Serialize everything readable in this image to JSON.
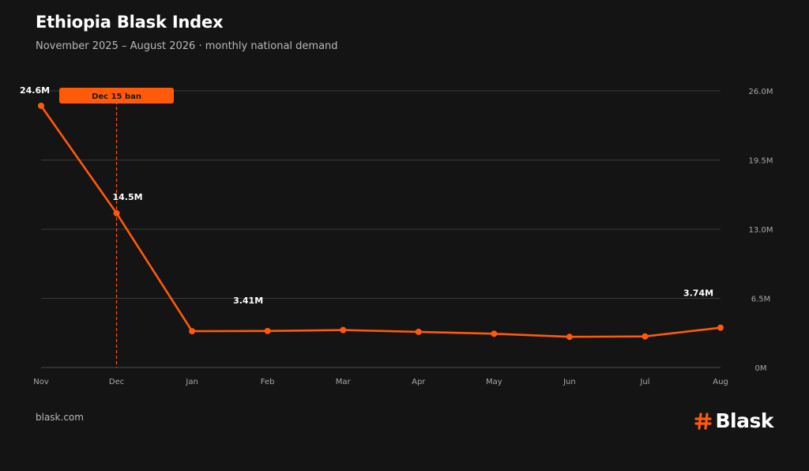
{
  "header": {
    "title": "Ethiopia Blask Index",
    "subtitle": "November 2025 – August 2026 · monthly national demand"
  },
  "footer": {
    "source": "blask.com",
    "brand": "Blask",
    "brand_icon": "hash-icon"
  },
  "colors": {
    "background": "#141414",
    "accent": "#ff5a0a",
    "grid": "#3a3a3a",
    "text": "#ffffff",
    "muted": "#a8a8a8"
  },
  "chart_data": {
    "type": "line",
    "categories": [
      "Nov",
      "Dec",
      "Jan",
      "Feb",
      "Mar",
      "Apr",
      "May",
      "Jun",
      "Jul",
      "Aug"
    ],
    "series": [
      {
        "values": [
          24.6,
          14.5,
          3.41,
          3.43,
          3.52,
          3.35,
          3.17,
          2.88,
          2.92,
          3.74
        ]
      }
    ],
    "ylim": [
      0,
      26
    ],
    "yticks": [
      "0M",
      "6.5M",
      "13.0M",
      "19.5M",
      "26.0M"
    ],
    "ytick_values": [
      0,
      6.5,
      13,
      19.5,
      26
    ],
    "y_axis_side": "right",
    "grid": true,
    "data_labels": [
      {
        "index": 0,
        "text": "24.6M"
      },
      {
        "index": 1,
        "text": "14.5M"
      },
      {
        "index": 2,
        "text": "3.41M"
      },
      {
        "index": 9,
        "text": "3.74M"
      }
    ],
    "annotations": [
      {
        "label": "Dec 15 ban",
        "at_category": "Dec"
      }
    ]
  }
}
